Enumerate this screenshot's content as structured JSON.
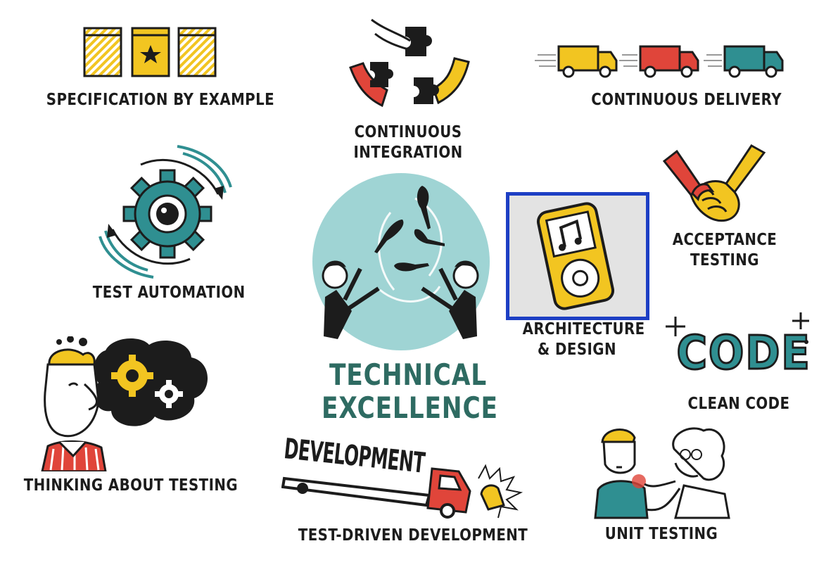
{
  "center": {
    "title_line1": "TECHNICAL",
    "title_line2": "EXCELLENCE"
  },
  "practices": {
    "specification_by_example": "SPECIFICATION BY EXAMPLE",
    "continuous_integration_l1": "CONTINUOUS",
    "continuous_integration_l2": "INTEGRATION",
    "continuous_delivery": "CONTINUOUS DELIVERY",
    "test_automation": "TEST AUTOMATION",
    "acceptance_testing_l1": "ACCEPTANCE",
    "acceptance_testing_l2": "TESTING",
    "architecture_design_l1": "ARCHITECTURE",
    "architecture_design_l2": "& DESIGN",
    "code_word": "CODE",
    "clean_code": "CLEAN CODE",
    "thinking_about_testing": "THINKING ABOUT TESTING",
    "development_word": "DEVELOPMENT",
    "test_driven_development": "TEST-DRIVEN DEVELOPMENT",
    "unit_testing": "UNIT TESTING"
  },
  "colors": {
    "teal": "#2f8f91",
    "teal_light": "#9fd4d4",
    "yellow": "#f2c521",
    "red": "#e0453a",
    "ink": "#1c1c1c",
    "title_green": "#2e6b62",
    "frame_blue": "#1d3fc4"
  }
}
